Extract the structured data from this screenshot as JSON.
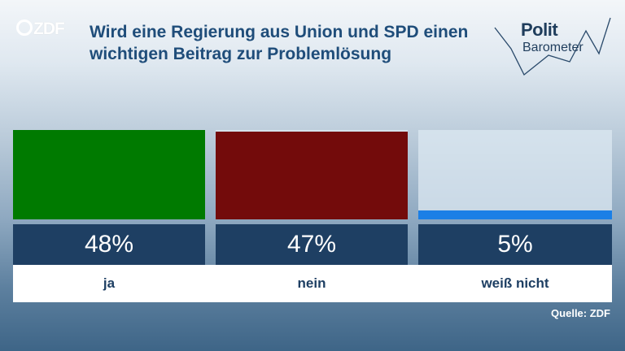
{
  "logo": {
    "text": "ZDF"
  },
  "header": {
    "title": "Wird eine Regierung aus Union und SPD einen wichtigen Beitrag zur Problemlösung"
  },
  "brand": {
    "line1": "Polit",
    "line2": "Barometer"
  },
  "source": "Quelle: ZDF",
  "colors": {
    "ja": "#007a00",
    "nein": "#730b0b",
    "weiss_nicht": "#1b7fe6",
    "value_box": "#1e3f63",
    "title": "#1f4d7a"
  },
  "chart_data": {
    "type": "bar",
    "title": "Wird eine Regierung aus Union und SPD einen wichtigen Beitrag zur Problemlösung",
    "categories": [
      "ja",
      "nein",
      "weiß nicht"
    ],
    "values": [
      48,
      47,
      5
    ],
    "value_labels": [
      "48%",
      "47%",
      "5%"
    ],
    "unit": "%",
    "ylim": [
      0,
      48
    ],
    "legend": "none",
    "grid": false
  }
}
